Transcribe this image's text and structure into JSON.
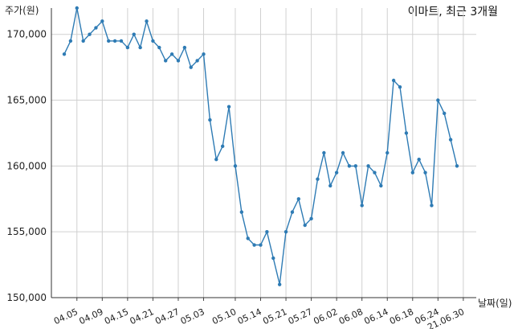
{
  "chart_data": {
    "type": "line",
    "title": "이마트, 최근 3개월",
    "ylabel": "주가(원)",
    "xlabel": "날짜(일)",
    "ylim": [
      150000,
      172000
    ],
    "yticks": [
      150000,
      155000,
      160000,
      165000,
      170000
    ],
    "ytick_labels": [
      "150,000",
      "155,000",
      "160,000",
      "165,000",
      "170,000"
    ],
    "grid": true,
    "line_color": "#2e7bb4",
    "x_tick_indices": [
      2,
      6,
      10,
      14,
      18,
      22,
      27,
      31,
      35,
      39,
      43,
      47,
      51,
      55,
      59,
      63
    ],
    "x_tick_labels": [
      "04.05",
      "04.09",
      "04.15",
      "04.21",
      "04.27",
      "05.03",
      "05.10",
      "05.14",
      "05.21",
      "05.27",
      "06.02",
      "06.08",
      "06.14",
      "06.18",
      "06.24",
      "21.06.30"
    ],
    "values": [
      168500,
      169500,
      172000,
      169500,
      170000,
      170500,
      171000,
      169500,
      169500,
      169500,
      169000,
      170000,
      169000,
      171000,
      169500,
      169000,
      168000,
      168500,
      168000,
      169000,
      167500,
      168000,
      168500,
      163500,
      160500,
      161500,
      164500,
      160000,
      156500,
      154500,
      154000,
      154000,
      155000,
      153000,
      151000,
      155000,
      156500,
      157500,
      155500,
      156000,
      159000,
      161000,
      158500,
      159500,
      161000,
      160000,
      160000,
      157000,
      160000,
      159500,
      158500,
      161000,
      166500,
      166000,
      162500,
      159500,
      160500,
      159500,
      157000,
      165000,
      164000,
      162000,
      160000
    ]
  }
}
